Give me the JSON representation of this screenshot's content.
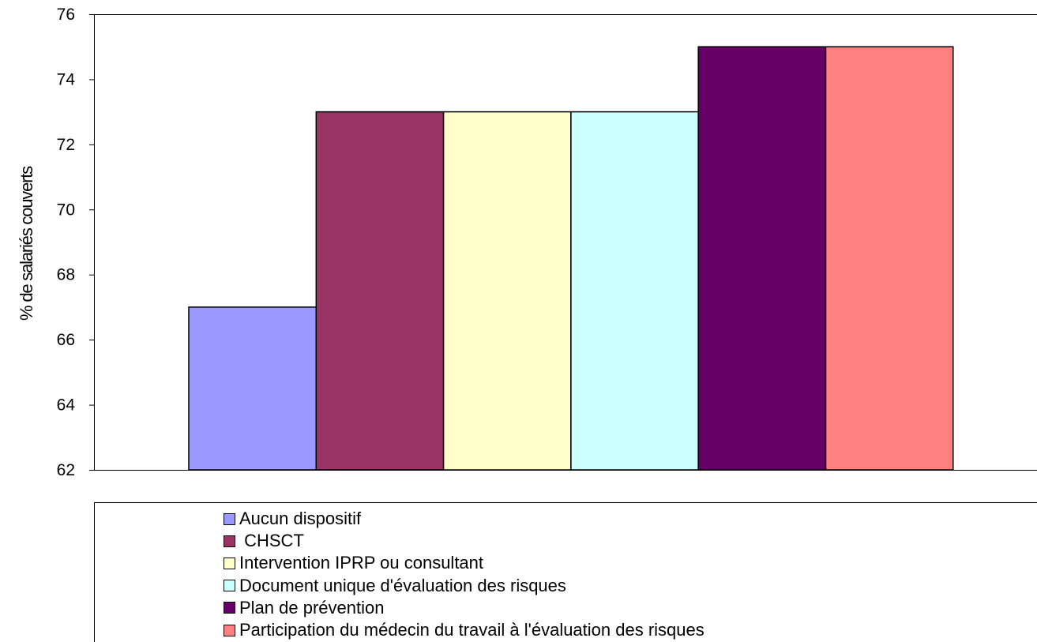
{
  "chart_data": {
    "type": "bar",
    "ylabel": "% de salariés couverts",
    "ylim": [
      62,
      76
    ],
    "yticks": [
      "62",
      "64",
      "66",
      "68",
      "70",
      "72",
      "74",
      "76"
    ],
    "grid": false,
    "legend_position": "bottom",
    "series": [
      {
        "name": "Aucun dispositif",
        "value": 67,
        "color": "#9999FF"
      },
      {
        "name": " CHSCT",
        "value": 73,
        "color": "#993366"
      },
      {
        "name": "Intervention IPRP ou consultant",
        "value": 73,
        "color": "#FFFFCC"
      },
      {
        "name": "Document unique d'évaluation des risques",
        "value": 73,
        "color": "#CCFFFF"
      },
      {
        "name": "Plan de prévention",
        "value": 75,
        "color": "#660066"
      },
      {
        "name": "Participation du médecin du travail à l'évaluation des risques",
        "value": 75,
        "color": "#FF8080"
      }
    ]
  }
}
